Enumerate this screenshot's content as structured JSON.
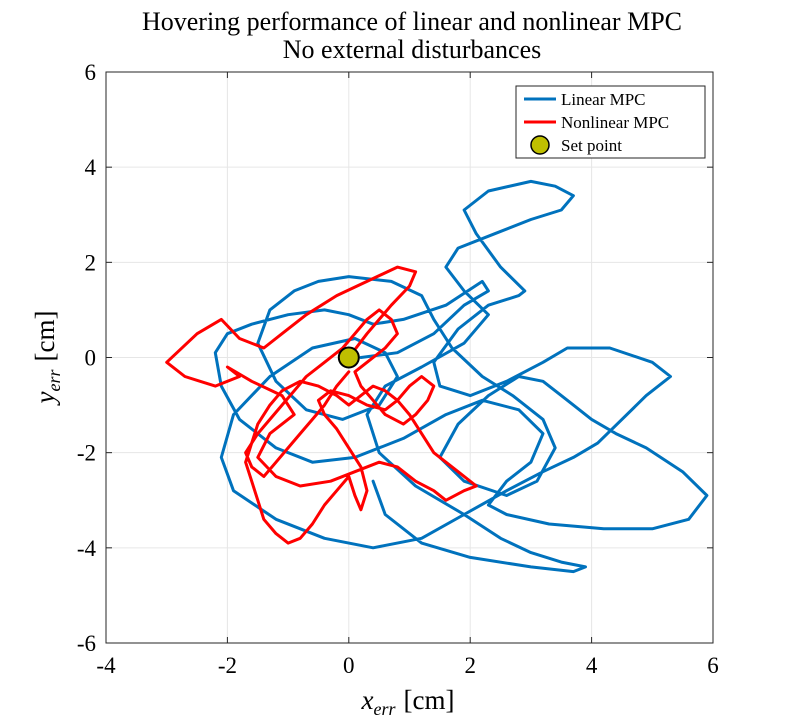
{
  "chart_data": {
    "type": "line",
    "title": "Hovering performance of linear and nonlinear MPC",
    "subtitle": "No external disturbances",
    "xlabel": "x_err [cm]",
    "ylabel": "y_err [cm]",
    "xlabel_var": "x",
    "xlabel_sub": "err",
    "xlabel_unit": "[cm]",
    "ylabel_var": "y",
    "ylabel_sub": "err",
    "ylabel_unit": "[cm]",
    "xlim": [
      -4,
      6
    ],
    "ylim": [
      -6,
      6
    ],
    "xticks": [
      -4,
      -2,
      0,
      2,
      4,
      6
    ],
    "yticks": [
      -6,
      -4,
      -2,
      0,
      2,
      4,
      6
    ],
    "grid": true,
    "legend_position": "top-right",
    "series": [
      {
        "name": "Linear MPC",
        "color": "#0072BD",
        "x": [
          0.2,
          0.8,
          1.4,
          1.9,
          2.3,
          2.2,
          1.6,
          0.9,
          0.4,
          0.0,
          -0.4,
          -1.0,
          -1.6,
          -2.0,
          -2.2,
          -2.1,
          -1.8,
          -1.2,
          -0.6,
          0.1,
          0.9,
          1.6,
          2.2,
          2.8,
          3.2,
          3.0,
          2.6,
          2.3,
          2.6,
          3.3,
          4.2,
          5.0,
          5.6,
          5.9,
          5.5,
          4.9,
          4.4,
          4.0,
          3.7,
          3.5,
          3.2,
          2.8,
          2.3,
          1.8,
          1.5,
          1.9,
          2.6,
          3.1,
          3.4,
          3.2,
          2.7,
          2.2,
          1.7,
          1.4,
          1.2,
          0.7,
          0.0,
          -0.5,
          -0.9,
          -1.3,
          -1.5,
          -1.2,
          -0.7,
          -0.1,
          0.5,
          0.8,
          0.6,
          0.1,
          -0.6,
          -1.3,
          -1.9,
          -2.1,
          -1.9,
          -1.2,
          -0.4,
          0.4,
          1.2,
          1.9,
          2.6,
          3.2,
          3.7,
          4.1,
          4.5,
          4.9,
          5.3,
          5.0,
          4.3,
          3.6,
          3.2,
          2.6,
          2.0,
          1.5,
          1.4,
          1.8,
          2.3,
          2.8,
          2.9,
          2.5,
          2.1,
          1.9,
          2.3,
          3.0,
          3.4,
          3.7,
          3.5,
          3.0,
          2.4,
          1.8,
          1.6,
          1.9,
          2.3,
          1.9,
          1.2,
          0.6,
          0.3,
          0.5,
          1.1,
          1.9,
          2.5,
          3.0,
          3.5,
          3.9,
          3.7,
          3.0,
          2.0,
          1.2,
          0.6,
          0.4
        ],
        "y": [
          0.0,
          0.1,
          0.5,
          1.1,
          1.4,
          1.6,
          1.1,
          0.8,
          0.7,
          0.9,
          1.0,
          0.9,
          0.7,
          0.5,
          0.1,
          -0.6,
          -1.3,
          -1.9,
          -2.2,
          -2.1,
          -1.7,
          -1.2,
          -0.9,
          -1.1,
          -1.6,
          -2.2,
          -2.6,
          -3.1,
          -3.3,
          -3.5,
          -3.6,
          -3.6,
          -3.4,
          -2.9,
          -2.4,
          -1.9,
          -1.6,
          -1.3,
          -1.0,
          -0.8,
          -0.5,
          -0.4,
          -0.8,
          -1.4,
          -2.1,
          -2.6,
          -2.9,
          -2.6,
          -1.9,
          -1.3,
          -0.8,
          -0.4,
          0.2,
          0.8,
          1.3,
          1.6,
          1.7,
          1.6,
          1.4,
          1.0,
          0.3,
          -0.5,
          -1.1,
          -1.3,
          -1.0,
          -0.4,
          0.1,
          0.4,
          0.2,
          -0.4,
          -1.2,
          -2.1,
          -2.8,
          -3.4,
          -3.8,
          -4.0,
          -3.8,
          -3.3,
          -2.8,
          -2.4,
          -2.1,
          -1.8,
          -1.3,
          -0.8,
          -0.4,
          -0.1,
          0.2,
          0.2,
          -0.1,
          -0.5,
          -0.8,
          -0.6,
          -0.1,
          0.6,
          1.1,
          1.3,
          1.4,
          1.9,
          2.6,
          3.1,
          3.5,
          3.7,
          3.6,
          3.4,
          3.1,
          2.9,
          2.6,
          2.3,
          1.9,
          1.4,
          0.9,
          0.3,
          -0.2,
          -0.6,
          -1.2,
          -2.0,
          -2.7,
          -3.3,
          -3.8,
          -4.1,
          -4.3,
          -4.4,
          -4.5,
          -4.4,
          -4.2,
          -3.9,
          -3.3,
          -2.6
        ]
      },
      {
        "name": "Nonlinear MPC",
        "color": "#FF0000",
        "x": [
          0.0,
          0.3,
          0.7,
          1.0,
          1.1,
          0.8,
          0.3,
          -0.2,
          -0.7,
          -1.1,
          -1.4,
          -1.8,
          -2.1,
          -2.5,
          -3.0,
          -2.7,
          -2.2,
          -1.8,
          -2.0,
          -1.6,
          -1.1,
          -0.9,
          -1.3,
          -1.5,
          -1.2,
          -0.8,
          -0.3,
          0.1,
          0.5,
          0.8,
          1.1,
          1.4,
          1.6,
          1.9,
          2.1,
          1.8,
          1.4,
          1.2,
          1.0,
          0.8,
          0.6,
          0.4,
          0.2,
          0.0,
          -0.2,
          -0.5,
          -0.8,
          -1.1,
          -1.3,
          -1.5,
          -1.6,
          -1.7,
          -1.6,
          -1.5,
          -1.4,
          -1.2,
          -1.0,
          -0.8,
          -0.6,
          -0.4,
          -0.2,
          0.0,
          0.1,
          0.2,
          0.3,
          0.2,
          0.0,
          -0.2,
          -0.4,
          -0.5,
          -0.3,
          0.0,
          0.3,
          0.6,
          0.8,
          1.0,
          1.2,
          1.4,
          1.3,
          1.1,
          0.9,
          0.6,
          0.4,
          0.2,
          0.1,
          0.3,
          0.6,
          0.8,
          0.7,
          0.5,
          0.3,
          0.1,
          -0.1,
          -0.4,
          -0.7,
          -0.9,
          -1.1,
          -1.3,
          -1.5,
          -1.7,
          -1.6,
          -1.4,
          -1.2,
          -1.0,
          -0.8,
          -0.6,
          -0.4,
          -0.2,
          0.0
        ],
        "y": [
          0.0,
          0.5,
          1.1,
          1.5,
          1.8,
          1.9,
          1.6,
          1.3,
          0.9,
          0.5,
          0.2,
          0.4,
          0.8,
          0.5,
          -0.1,
          -0.4,
          -0.6,
          -0.4,
          -0.2,
          -0.5,
          -0.8,
          -1.2,
          -1.6,
          -2.1,
          -2.5,
          -2.7,
          -2.6,
          -2.4,
          -2.2,
          -2.3,
          -2.6,
          -2.8,
          -3.0,
          -2.8,
          -2.7,
          -2.4,
          -2.0,
          -1.6,
          -1.2,
          -0.9,
          -0.7,
          -0.6,
          -0.8,
          -1.0,
          -0.8,
          -0.6,
          -0.5,
          -0.7,
          -1.0,
          -1.4,
          -1.8,
          -2.2,
          -2.6,
          -3.0,
          -3.4,
          -3.7,
          -3.9,
          -3.8,
          -3.5,
          -3.1,
          -2.8,
          -2.5,
          -2.9,
          -3.2,
          -2.8,
          -2.3,
          -1.9,
          -1.5,
          -1.2,
          -0.9,
          -0.7,
          -0.8,
          -1.0,
          -1.1,
          -0.9,
          -0.6,
          -0.4,
          -0.6,
          -0.9,
          -1.2,
          -1.4,
          -1.2,
          -0.9,
          -0.6,
          -0.3,
          -0.1,
          0.2,
          0.5,
          0.8,
          1.0,
          0.8,
          0.5,
          0.2,
          -0.1,
          -0.4,
          -0.7,
          -1.0,
          -1.3,
          -1.6,
          -2.0,
          -2.3,
          -2.5,
          -2.2,
          -1.9,
          -1.6,
          -1.3,
          -1.0,
          -0.6,
          -0.3
        ]
      }
    ],
    "setpoint": {
      "name": "Set point",
      "x": 0,
      "y": 0,
      "color": "#BFBF00"
    }
  }
}
